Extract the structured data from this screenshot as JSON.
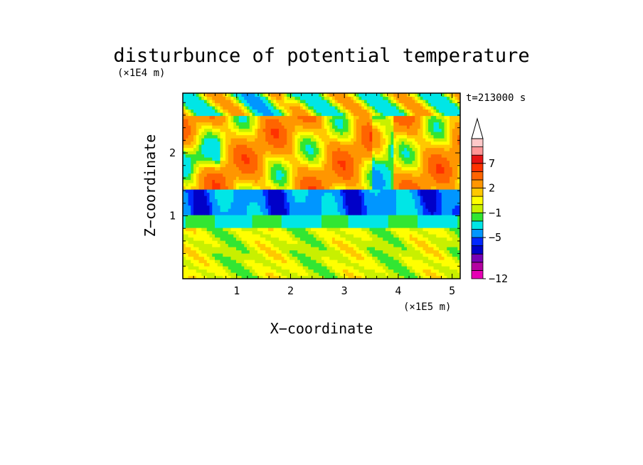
{
  "chart_data": {
    "type": "heatmap",
    "title": "disturbunce of potential temperature",
    "xlabel": "X−coordinate",
    "ylabel": "Z−coordinate",
    "x_unit": "(×1E5 m)",
    "y_unit": "(×1E4 m)",
    "time_label": "t=213000 s",
    "x_range": [
      0.0,
      5.15
    ],
    "y_range": [
      0.0,
      2.95
    ],
    "x_ticks": [
      1,
      2,
      3,
      4,
      5
    ],
    "y_ticks": [
      1,
      2
    ],
    "grid": false,
    "colorbar": {
      "position": "right",
      "extend": "max",
      "labeled_levels": [
        "7",
        "2",
        "−1",
        "−5",
        "−12"
      ],
      "level_colors": [
        "#e600b4",
        "#b400a0",
        "#7800b4",
        "#0000c8",
        "#0028ff",
        "#0096ff",
        "#00e6e6",
        "#32e632",
        "#c8f000",
        "#ffff00",
        "#ffc800",
        "#ff9600",
        "#ff6400",
        "#ff3200",
        "#e61414",
        "#ff9696",
        "#ffc8c8"
      ]
    },
    "bands": [
      {
        "z_range": [
          0.0,
          0.3
        ],
        "dominant": "yellow / green"
      },
      {
        "z_range": [
          0.3,
          0.8
        ],
        "dominant": "green / yellow"
      },
      {
        "z_range": [
          0.8,
          1.0
        ],
        "dominant": "cyan"
      },
      {
        "z_range": [
          1.0,
          1.4
        ],
        "dominant": "blue (negative)"
      },
      {
        "z_range": [
          1.4,
          2.6
        ],
        "dominant": "yellow / orange (positive)"
      },
      {
        "z_range": [
          2.6,
          2.95
        ],
        "dominant": "yellow / cyan / blue blobs"
      }
    ]
  }
}
